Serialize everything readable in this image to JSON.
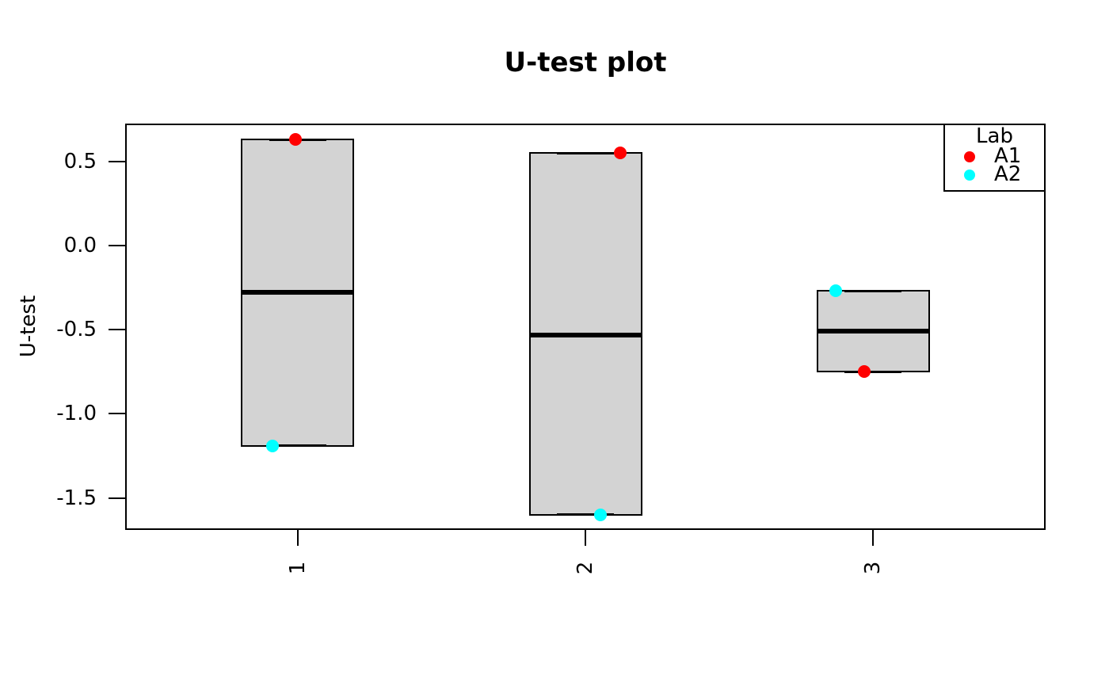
{
  "title": "U-test plot",
  "y_axis": {
    "label": "U-test",
    "ticks": [
      "0.5",
      "0.0",
      "-0.5",
      "-1.0",
      "-1.5"
    ],
    "tick_values": [
      0.5,
      0.0,
      -0.5,
      -1.0,
      -1.5
    ]
  },
  "x_axis": {
    "ticks": [
      "1",
      "2",
      "3"
    ]
  },
  "legend": {
    "title": "Lab",
    "entries": [
      {
        "label": "A1",
        "color": "#FF0000"
      },
      {
        "label": "A2",
        "color": "#00FFFF"
      }
    ]
  },
  "colors": {
    "box_fill": "#D3D3D3",
    "box_border": "#000000",
    "median_line": "#000000",
    "point_a1": "#FF0000",
    "point_a2": "#00FFFF",
    "background": "#FFFFFF"
  },
  "chart_data": {
    "type": "boxplot",
    "title": "U-test plot",
    "xlabel": "",
    "ylabel": "U-test",
    "categories": [
      "1",
      "2",
      "3"
    ],
    "ylim": [
      -1.69,
      0.725
    ],
    "xlim": [
      0.4,
      3.6
    ],
    "ytick_values": [
      0.5,
      0.0,
      -0.5,
      -1.0,
      -1.5
    ],
    "grid": false,
    "legend_position": "topright",
    "groups": [
      {
        "category": "1",
        "x": 1,
        "box_top": 0.63,
        "mid": -0.28,
        "box_bottom": -1.19,
        "points": [
          {
            "lab": "A1",
            "value": 0.63,
            "color": "#FF0000",
            "x_offset": -0.02
          },
          {
            "lab": "A2",
            "value": -1.19,
            "color": "#00FFFF",
            "x_offset": -0.22
          }
        ]
      },
      {
        "category": "2",
        "x": 2,
        "box_top": 0.55,
        "mid": -0.53,
        "box_bottom": -1.6,
        "points": [
          {
            "lab": "A1",
            "value": 0.55,
            "color": "#FF0000",
            "x_offset": 0.31
          },
          {
            "lab": "A2",
            "value": -1.6,
            "color": "#00FFFF",
            "x_offset": 0.13
          }
        ]
      },
      {
        "category": "3",
        "x": 3,
        "box_top": -0.27,
        "mid": -0.51,
        "box_bottom": -0.75,
        "points": [
          {
            "lab": "A2",
            "value": -0.27,
            "color": "#00FFFF",
            "x_offset": -0.33
          },
          {
            "lab": "A1",
            "value": -0.75,
            "color": "#FF0000",
            "x_offset": -0.08
          }
        ]
      }
    ]
  }
}
